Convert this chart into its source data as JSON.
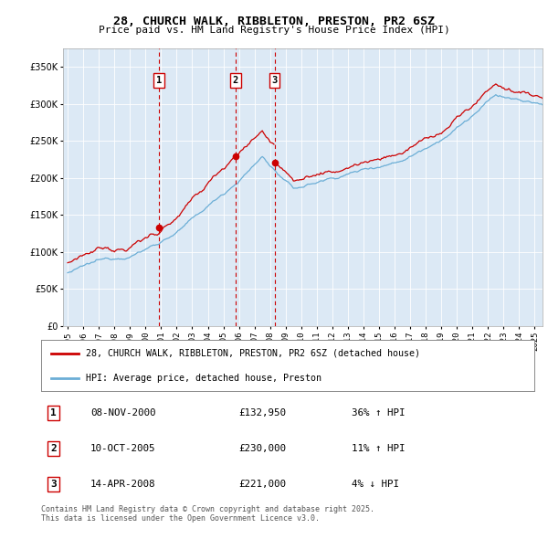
{
  "title": "28, CHURCH WALK, RIBBLETON, PRESTON, PR2 6SZ",
  "subtitle": "Price paid vs. HM Land Registry's House Price Index (HPI)",
  "plot_bg_color": "#dce9f5",
  "hpi_line_color": "#6baed6",
  "sale_line_color": "#cc0000",
  "dashed_line_color": "#cc0000",
  "ylim": [
    0,
    375000
  ],
  "yticks": [
    0,
    50000,
    100000,
    150000,
    200000,
    250000,
    300000,
    350000
  ],
  "xlim_start": 1994.7,
  "xlim_end": 2025.5,
  "transactions": [
    {
      "date": 2000.86,
      "price": 132950,
      "label": "1"
    },
    {
      "date": 2005.78,
      "price": 230000,
      "label": "2"
    },
    {
      "date": 2008.29,
      "price": 221000,
      "label": "3"
    }
  ],
  "transaction_table": [
    {
      "num": "1",
      "date": "08-NOV-2000",
      "price": "£132,950",
      "change": "36% ↑ HPI"
    },
    {
      "num": "2",
      "date": "10-OCT-2005",
      "price": "£230,000",
      "change": "11% ↑ HPI"
    },
    {
      "num": "3",
      "date": "14-APR-2008",
      "price": "£221,000",
      "change": "4% ↓ HPI"
    }
  ],
  "legend_entries": [
    "28, CHURCH WALK, RIBBLETON, PRESTON, PR2 6SZ (detached house)",
    "HPI: Average price, detached house, Preston"
  ],
  "footnote": "Contains HM Land Registry data © Crown copyright and database right 2025.\nThis data is licensed under the Open Government Licence v3.0."
}
